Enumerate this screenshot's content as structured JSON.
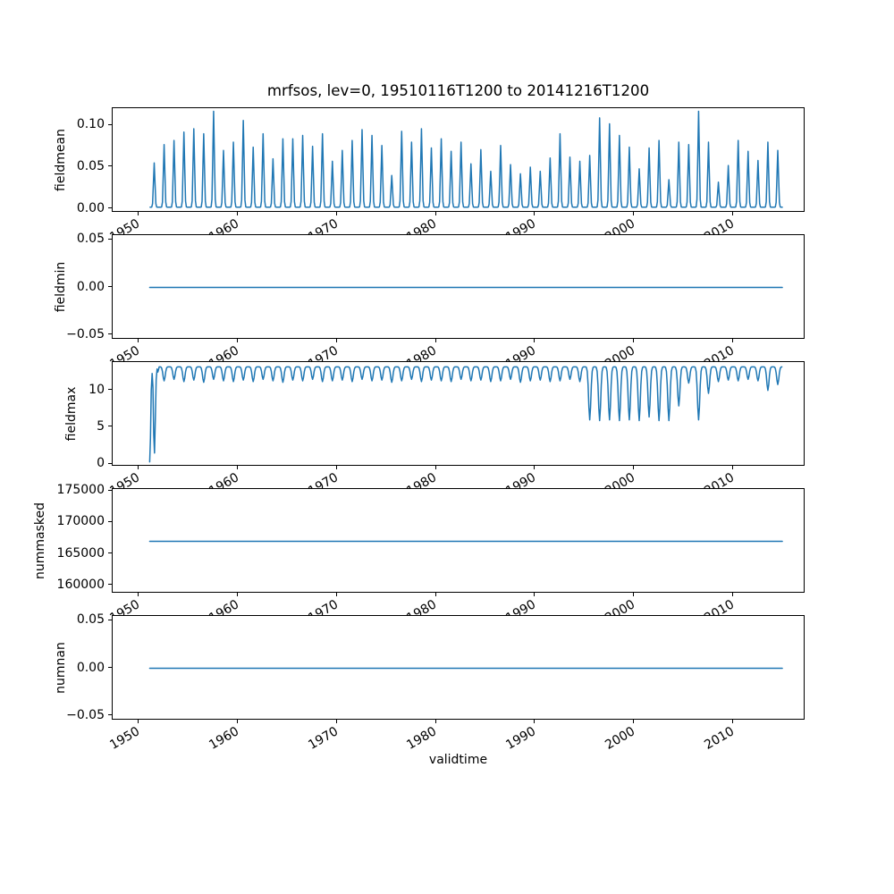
{
  "title": "mrfsos, lev=0, 19510116T1200 to 20141216T1200",
  "xlabel": "validtime",
  "colors": {
    "line": "#1f77b4",
    "frame": "#000000",
    "text": "#000000",
    "background": "#ffffff"
  },
  "x_axis": {
    "tick_years": [
      1950,
      1960,
      1970,
      1980,
      1990,
      2000,
      2010
    ],
    "tick_labels": [
      "1950",
      "1960",
      "1970",
      "1980",
      "1990",
      "2000",
      "2010"
    ],
    "xlim": [
      1947.3,
      2017.3
    ],
    "data_start": 1951.042,
    "data_end": 2014.958
  },
  "chart_data": [
    {
      "name": "fieldmean",
      "type": "line",
      "ylabel": "fieldmean",
      "ylim": [
        -0.0047,
        0.1207
      ],
      "yticks": [
        {
          "v": 0.0,
          "label": "0.00"
        },
        {
          "v": 0.05,
          "label": "0.05"
        },
        {
          "v": 0.1,
          "label": "0.10"
        }
      ],
      "waveform": "annual_spike",
      "baseline": 0.002,
      "start_year": 1951,
      "annual_peaks": [
        0.053,
        0.075,
        0.08,
        0.09,
        0.094,
        0.088,
        0.115,
        0.068,
        0.078,
        0.104,
        0.072,
        0.088,
        0.058,
        0.082,
        0.082,
        0.086,
        0.073,
        0.088,
        0.055,
        0.068,
        0.08,
        0.093,
        0.086,
        0.074,
        0.038,
        0.091,
        0.078,
        0.094,
        0.071,
        0.082,
        0.067,
        0.078,
        0.052,
        0.069,
        0.043,
        0.074,
        0.051,
        0.04,
        0.048,
        0.043,
        0.059,
        0.088,
        0.06,
        0.055,
        0.062,
        0.107,
        0.1,
        0.086,
        0.072,
        0.046,
        0.071,
        0.08,
        0.033,
        0.078,
        0.075,
        0.115,
        0.078,
        0.03,
        0.05,
        0.08,
        0.067,
        0.056,
        0.078,
        0.068
      ]
    },
    {
      "name": "fieldmin",
      "type": "line",
      "ylabel": "fieldmin",
      "ylim": [
        -0.055,
        0.055
      ],
      "yticks": [
        {
          "v": -0.05,
          "label": "−0.05"
        },
        {
          "v": 0.0,
          "label": "0.00"
        },
        {
          "v": 0.05,
          "label": "0.05"
        }
      ],
      "waveform": "constant",
      "constant_value": 0.0
    },
    {
      "name": "fieldmax",
      "type": "line",
      "ylabel": "fieldmax",
      "ylim": [
        -0.345,
        13.845
      ],
      "yticks": [
        {
          "v": 0,
          "label": "0"
        },
        {
          "v": 5,
          "label": "5"
        },
        {
          "v": 10,
          "label": "10"
        }
      ],
      "waveform": "annual_dip",
      "annual_high": 13.2,
      "start_year": 1952,
      "annual_troughs": [
        11.3,
        11.5,
        11.2,
        11.4,
        11.1,
        11.5,
        11.3,
        11.2,
        11.4,
        11.2,
        11.5,
        11.3,
        11.1,
        11.4,
        11.3,
        11.5,
        11.2,
        11.3,
        11.4,
        11.2,
        11.5,
        11.3,
        11.4,
        11.1,
        11.3,
        11.5,
        11.2,
        11.4,
        11.3,
        11.2,
        11.5,
        11.3,
        11.4,
        11.2,
        11.3,
        11.5,
        11.1,
        11.3,
        11.4,
        11.2,
        11.3,
        11.5,
        11.2,
        6.0,
        5.9,
        6.0,
        5.9,
        6.0,
        5.9,
        6.4,
        5.9,
        5.9,
        7.9,
        11.0,
        6.0,
        9.6,
        11.2,
        11.4,
        11.3,
        11.5,
        11.3,
        10.0,
        10.8
      ],
      "start_anomaly_points": [
        [
          1951.042,
          0.3
        ],
        [
          1951.12,
          3.5
        ],
        [
          1951.2,
          10.0
        ],
        [
          1951.29,
          12.3
        ],
        [
          1951.37,
          10.5
        ],
        [
          1951.45,
          4.0
        ],
        [
          1951.53,
          1.5
        ],
        [
          1951.62,
          6.5
        ],
        [
          1951.7,
          11.5
        ],
        [
          1951.79,
          12.9
        ],
        [
          1951.87,
          12.5
        ],
        [
          1951.95,
          12.9
        ]
      ]
    },
    {
      "name": "nummasked",
      "type": "line",
      "ylabel": "nummasked",
      "ylim": [
        158650,
        175350
      ],
      "yticks": [
        {
          "v": 160000,
          "label": "160000"
        },
        {
          "v": 165000,
          "label": "165000"
        },
        {
          "v": 170000,
          "label": "170000"
        },
        {
          "v": 175000,
          "label": "175000"
        }
      ],
      "waveform": "constant",
      "constant_value": 167000
    },
    {
      "name": "numnan",
      "type": "line",
      "ylabel": "numnan",
      "ylim": [
        -0.055,
        0.055
      ],
      "yticks": [
        {
          "v": -0.05,
          "label": "−0.05"
        },
        {
          "v": 0.0,
          "label": "0.00"
        },
        {
          "v": 0.05,
          "label": "0.05"
        }
      ],
      "waveform": "constant",
      "constant_value": 0.0
    }
  ]
}
